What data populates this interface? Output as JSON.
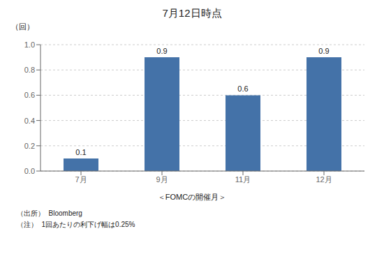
{
  "chart_data": {
    "type": "bar",
    "title": "7月12日時点",
    "categories": [
      "7月",
      "9月",
      "11月",
      "12月"
    ],
    "values": [
      0.1,
      0.9,
      0.6,
      0.9
    ],
    "color": "#4472a8",
    "ylabel": "（回）",
    "xlabel": "＜FOMCの開催月＞",
    "annotations": [
      "（出所）  Bloomberg",
      "（注）  1回あたりの利下げ幅は0.25%"
    ],
    "ylim": [
      0.0,
      1.0
    ],
    "yticks": [
      {
        "value": 0,
        "label": "0.0"
      },
      0.2,
      0.4,
      0.6,
      0.8,
      {
        "value": 1,
        "label": "1.0"
      }
    ],
    "grid": true,
    "data_labels": true
  }
}
